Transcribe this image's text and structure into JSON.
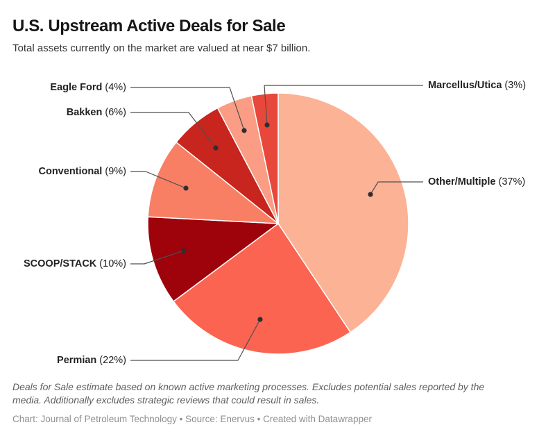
{
  "header": {
    "title": "U.S. Upstream Active Deals for Sale",
    "subtitle": "Total assets currently on the market are valued at near $7 billion."
  },
  "chart_data": {
    "type": "pie",
    "title": "U.S. Upstream Active Deals for Sale",
    "subtitle": "Total assets currently on the market are valued at near $7 billion.",
    "unit": "percent",
    "slice_order": "clockwise-from-12-o-clock",
    "labels_style": "outside-with-leader-lines",
    "slices": [
      {
        "label": "Other/Multiple",
        "value": 37,
        "pct_label": "(37%)",
        "color": "#fcb295"
      },
      {
        "label": "Permian",
        "value": 22,
        "pct_label": "(22%)",
        "color": "#fb6450"
      },
      {
        "label": "SCOOP/STACK",
        "value": 10,
        "pct_label": "(10%)",
        "color": "#9e030c"
      },
      {
        "label": "Conventional",
        "value": 9,
        "pct_label": "(9%)",
        "color": "#f87f64"
      },
      {
        "label": "Bakken",
        "value": 6,
        "pct_label": "(6%)",
        "color": "#c7251e"
      },
      {
        "label": "Eagle Ford",
        "value": 4,
        "pct_label": "(4%)",
        "color": "#fa9d84"
      },
      {
        "label": "Marcellus/Utica",
        "value": 3,
        "pct_label": "(3%)",
        "color": "#e8483b"
      }
    ],
    "leader_line_color": "#4f4f4f",
    "dot_color": "#2f2f2f",
    "slice_border_color": "#ffffff"
  },
  "footer": {
    "notes": "Deals for Sale estimate based on known active marketing processes. Excludes potential sales reported by the media. Additionally excludes strategic reviews that could result in sales.",
    "byline": "Chart: Journal of Petroleum Technology • Source: Enervus • Created with Datawrapper"
  }
}
